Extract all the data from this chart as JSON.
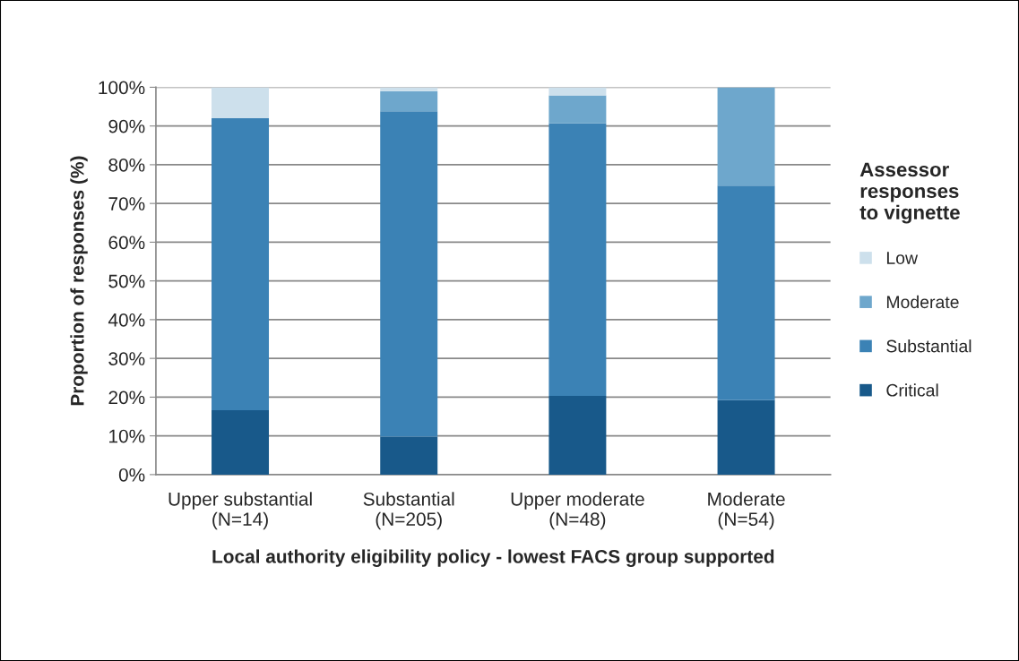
{
  "chart_data": {
    "type": "bar",
    "stacked": true,
    "xlabel": "Local authority eligibility policy - lowest FACS group supported",
    "ylabel": "Proportion of responses (%)",
    "legend_title": "Assessor\nresponses\nto vignette",
    "categories": [
      "Upper substantial\n(N=14)",
      "Substantial\n(N=205)",
      "Upper moderate\n(N=48)",
      "Moderate\n(N=54)"
    ],
    "series": [
      {
        "name": "Critical",
        "color": "#18598a",
        "values": [
          16.6,
          9.8,
          20.3,
          19.2
        ]
      },
      {
        "name": "Substantial",
        "color": "#3b82b5",
        "values": [
          75.4,
          84.0,
          70.4,
          55.4
        ]
      },
      {
        "name": "Moderate",
        "color": "#6ea7cc",
        "values": [
          null,
          5.2,
          7.2,
          25.4
        ]
      },
      {
        "name": "Low",
        "color": "#cde0ec",
        "values": [
          8.0,
          1.0,
          2.1,
          null
        ]
      }
    ],
    "ylim": [
      0,
      100
    ],
    "yticks": [
      {
        "value": 0,
        "label": "0%"
      },
      {
        "value": 10,
        "label": "10%"
      },
      {
        "value": 20,
        "label": "20%"
      },
      {
        "value": 30,
        "label": "30%"
      },
      {
        "value": 40,
        "label": "40%"
      },
      {
        "value": 50,
        "label": "50%"
      },
      {
        "value": 60,
        "label": "60%"
      },
      {
        "value": 70,
        "label": "70%"
      },
      {
        "value": 80,
        "label": "80%"
      },
      {
        "value": 90,
        "label": "90%"
      },
      {
        "value": 100,
        "label": "100%"
      }
    ],
    "grid": "y",
    "legend": "right"
  }
}
